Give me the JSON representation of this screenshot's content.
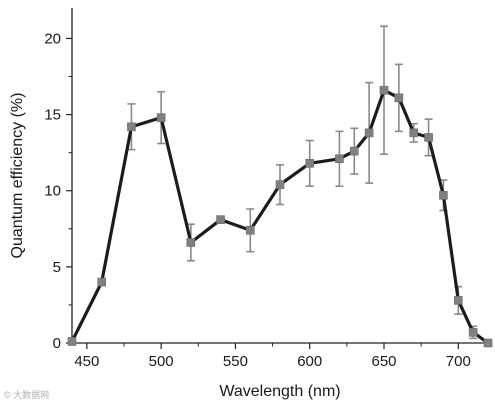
{
  "chart_data": {
    "type": "line",
    "xlabel": "Wavelength (nm)",
    "ylabel": "Quantum efficiency (%)",
    "xlim": [
      440,
      720
    ],
    "ylim": [
      0,
      22
    ],
    "xticks": [
      450,
      500,
      550,
      600,
      650,
      700
    ],
    "yticks": [
      0,
      5,
      10,
      15,
      20
    ],
    "grid": false,
    "colors": {
      "line": "#1c1c1c",
      "marker": "#808080",
      "error_bar": "#8a8a8a"
    },
    "series": [
      {
        "x": [
          440,
          460,
          480,
          500,
          520,
          540,
          560,
          580,
          600,
          620,
          630,
          640,
          650,
          660,
          670,
          680,
          690,
          700,
          710,
          720
        ],
        "y": [
          0.1,
          4.0,
          14.2,
          14.8,
          6.6,
          8.1,
          7.4,
          10.4,
          11.8,
          12.1,
          12.6,
          13.8,
          16.6,
          16.1,
          13.8,
          13.5,
          9.7,
          2.8,
          0.7,
          0.0
        ],
        "err": [
          0,
          0,
          1.5,
          1.7,
          1.2,
          0,
          1.4,
          1.3,
          1.5,
          1.8,
          1.5,
          3.3,
          4.2,
          2.2,
          0.6,
          1.2,
          1.0,
          0.9,
          0.4,
          0
        ]
      }
    ]
  },
  "watermark": "© 大数据网"
}
